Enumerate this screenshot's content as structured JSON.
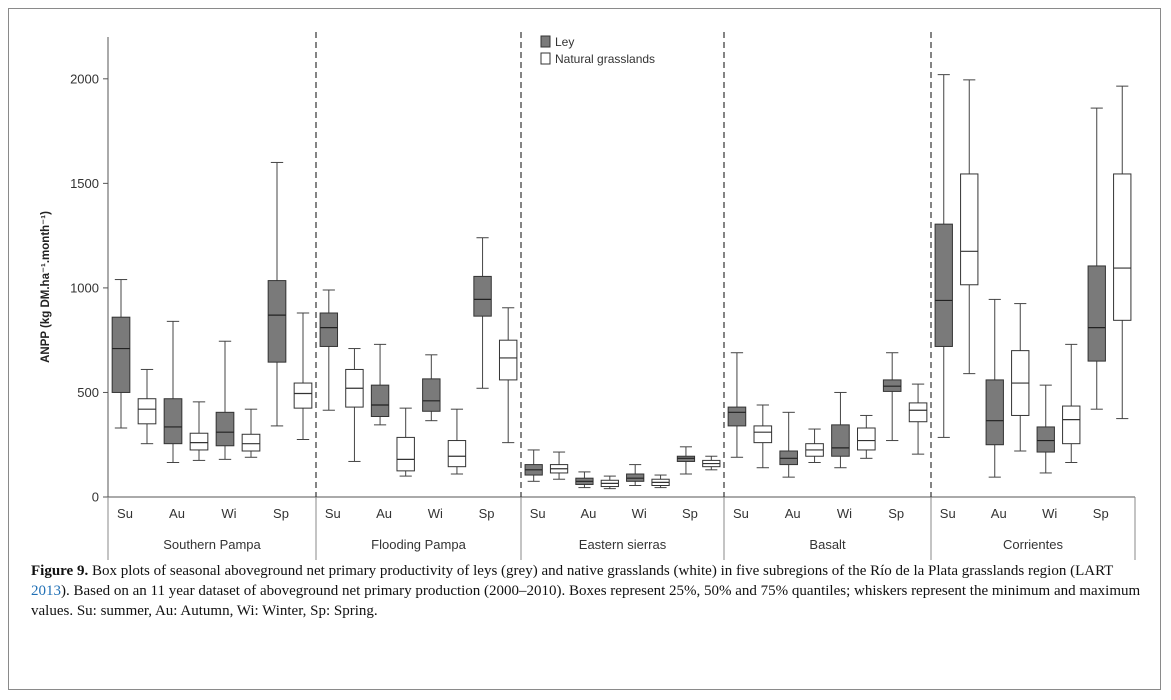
{
  "chart_data": {
    "type": "box",
    "ylabel": "ANPP (kg DM.ha⁻¹.month⁻¹)",
    "ylim": [
      0,
      2200
    ],
    "yticks": [
      0,
      500,
      1000,
      1500,
      2000
    ],
    "grid": false,
    "legend_position": "top-center",
    "legend": [
      {
        "name": "Ley",
        "color": "#7a7a7a"
      },
      {
        "name": "Natural grasslands",
        "color": "#ffffff"
      }
    ],
    "seasons": [
      "Su",
      "Au",
      "Wi",
      "Sp"
    ],
    "regions": [
      {
        "name": "Southern Pampa",
        "boxes": [
          {
            "season": "Su",
            "type": "ley",
            "min": 330,
            "q1": 500,
            "median": 710,
            "q3": 860,
            "max": 1040
          },
          {
            "season": "Su",
            "type": "natural",
            "min": 255,
            "q1": 350,
            "median": 420,
            "q3": 470,
            "max": 610
          },
          {
            "season": "Au",
            "type": "ley",
            "min": 165,
            "q1": 255,
            "median": 335,
            "q3": 470,
            "max": 840
          },
          {
            "season": "Au",
            "type": "natural",
            "min": 175,
            "q1": 225,
            "median": 260,
            "q3": 305,
            "max": 455
          },
          {
            "season": "Wi",
            "type": "ley",
            "min": 180,
            "q1": 245,
            "median": 310,
            "q3": 405,
            "max": 745
          },
          {
            "season": "Wi",
            "type": "natural",
            "min": 190,
            "q1": 220,
            "median": 255,
            "q3": 300,
            "max": 420
          },
          {
            "season": "Sp",
            "type": "ley",
            "min": 340,
            "q1": 645,
            "median": 870,
            "q3": 1035,
            "max": 1600
          },
          {
            "season": "Sp",
            "type": "natural",
            "min": 275,
            "q1": 425,
            "median": 495,
            "q3": 545,
            "max": 880
          }
        ]
      },
      {
        "name": "Flooding Pampa",
        "boxes": [
          {
            "season": "Su",
            "type": "ley",
            "min": 415,
            "q1": 720,
            "median": 810,
            "q3": 880,
            "max": 990
          },
          {
            "season": "Su",
            "type": "natural",
            "min": 170,
            "q1": 430,
            "median": 520,
            "q3": 610,
            "max": 710
          },
          {
            "season": "Au",
            "type": "ley",
            "min": 345,
            "q1": 385,
            "median": 440,
            "q3": 535,
            "max": 730
          },
          {
            "season": "Au",
            "type": "natural",
            "min": 100,
            "q1": 125,
            "median": 180,
            "q3": 285,
            "max": 425
          },
          {
            "season": "Wi",
            "type": "ley",
            "min": 365,
            "q1": 410,
            "median": 460,
            "q3": 565,
            "max": 680
          },
          {
            "season": "Wi",
            "type": "natural",
            "min": 110,
            "q1": 145,
            "median": 195,
            "q3": 270,
            "max": 420
          },
          {
            "season": "Sp",
            "type": "ley",
            "min": 520,
            "q1": 865,
            "median": 945,
            "q3": 1055,
            "max": 1240
          },
          {
            "season": "Sp",
            "type": "natural",
            "min": 260,
            "q1": 560,
            "median": 665,
            "q3": 750,
            "max": 905
          }
        ]
      },
      {
        "name": "Eastern sierras",
        "boxes": [
          {
            "season": "Su",
            "type": "ley",
            "min": 75,
            "q1": 105,
            "median": 130,
            "q3": 155,
            "max": 225
          },
          {
            "season": "Su",
            "type": "natural",
            "min": 85,
            "q1": 115,
            "median": 135,
            "q3": 155,
            "max": 215
          },
          {
            "season": "Au",
            "type": "ley",
            "min": 45,
            "q1": 60,
            "median": 75,
            "q3": 90,
            "max": 120
          },
          {
            "season": "Au",
            "type": "natural",
            "min": 40,
            "q1": 50,
            "median": 65,
            "q3": 80,
            "max": 100
          },
          {
            "season": "Wi",
            "type": "ley",
            "min": 55,
            "q1": 75,
            "median": 90,
            "q3": 110,
            "max": 155
          },
          {
            "season": "Wi",
            "type": "natural",
            "min": 45,
            "q1": 55,
            "median": 70,
            "q3": 85,
            "max": 105
          },
          {
            "season": "Sp",
            "type": "ley",
            "min": 110,
            "q1": 170,
            "median": 185,
            "q3": 195,
            "max": 240
          },
          {
            "season": "Sp",
            "type": "natural",
            "min": 130,
            "q1": 145,
            "median": 160,
            "q3": 175,
            "max": 195
          }
        ]
      },
      {
        "name": "Basalt",
        "boxes": [
          {
            "season": "Su",
            "type": "ley",
            "min": 190,
            "q1": 340,
            "median": 405,
            "q3": 430,
            "max": 690
          },
          {
            "season": "Su",
            "type": "natural",
            "min": 140,
            "q1": 260,
            "median": 310,
            "q3": 340,
            "max": 440
          },
          {
            "season": "Au",
            "type": "ley",
            "min": 95,
            "q1": 155,
            "median": 185,
            "q3": 220,
            "max": 405
          },
          {
            "season": "Au",
            "type": "natural",
            "min": 165,
            "q1": 195,
            "median": 225,
            "q3": 255,
            "max": 325
          },
          {
            "season": "Wi",
            "type": "ley",
            "min": 140,
            "q1": 195,
            "median": 235,
            "q3": 345,
            "max": 500
          },
          {
            "season": "Wi",
            "type": "natural",
            "min": 185,
            "q1": 225,
            "median": 270,
            "q3": 330,
            "max": 390
          },
          {
            "season": "Sp",
            "type": "ley",
            "min": 270,
            "q1": 505,
            "median": 530,
            "q3": 560,
            "max": 690
          },
          {
            "season": "Sp",
            "type": "natural",
            "min": 205,
            "q1": 360,
            "median": 415,
            "q3": 450,
            "max": 540
          }
        ]
      },
      {
        "name": "Corrientes",
        "boxes": [
          {
            "season": "Su",
            "type": "ley",
            "min": 285,
            "q1": 720,
            "median": 940,
            "q3": 1305,
            "max": 2020
          },
          {
            "season": "Su",
            "type": "natural",
            "min": 590,
            "q1": 1015,
            "median": 1175,
            "q3": 1545,
            "max": 1995
          },
          {
            "season": "Au",
            "type": "ley",
            "min": 95,
            "q1": 250,
            "median": 365,
            "q3": 560,
            "max": 945
          },
          {
            "season": "Au",
            "type": "natural",
            "min": 220,
            "q1": 390,
            "median": 545,
            "q3": 700,
            "max": 925
          },
          {
            "season": "Wi",
            "type": "ley",
            "min": 115,
            "q1": 215,
            "median": 270,
            "q3": 335,
            "max": 535
          },
          {
            "season": "Wi",
            "type": "natural",
            "min": 165,
            "q1": 255,
            "median": 370,
            "q3": 435,
            "max": 730
          },
          {
            "season": "Sp",
            "type": "ley",
            "min": 420,
            "q1": 650,
            "median": 810,
            "q3": 1105,
            "max": 1860
          },
          {
            "season": "Sp",
            "type": "natural",
            "min": 375,
            "q1": 845,
            "median": 1095,
            "q3": 1545,
            "max": 1965
          }
        ]
      }
    ]
  },
  "caption": {
    "label": "Figure 9.",
    "text_before": " Box plots of seasonal aboveground net primary productivity of leys (grey) and native grasslands (white) in five subregions of the Río de la Plata grasslands region (LART ",
    "link": "2013",
    "text_after": "). Based on an 11 year dataset of aboveground net primary production (2000–2010). Boxes represent 25%, 50% and 75% quantiles; whiskers represent the minimum and maximum values. Su: summer, Au: Autumn, Wi: Winter, Sp: Spring."
  }
}
